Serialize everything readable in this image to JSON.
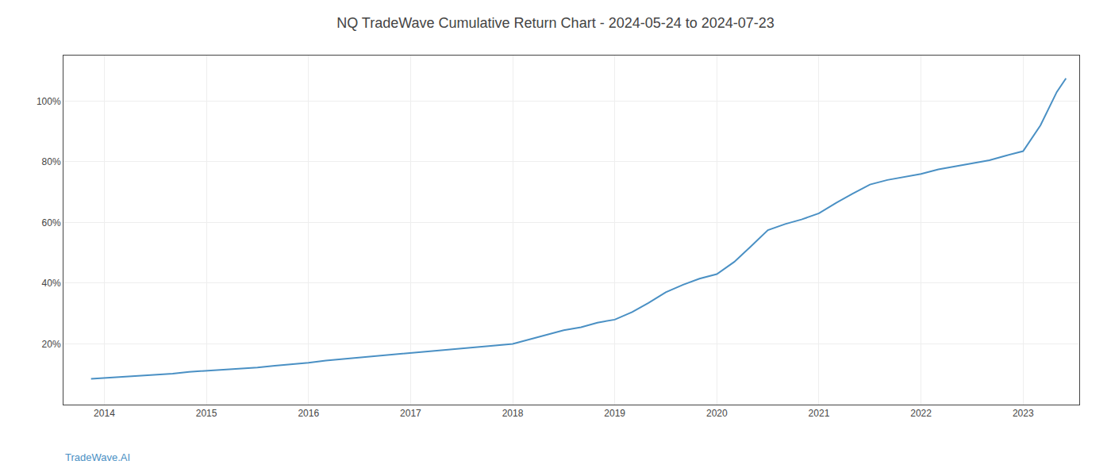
{
  "chart_data": {
    "type": "line",
    "title": "NQ TradeWave Cumulative Return Chart - 2024-05-24 to 2024-07-23",
    "annotations": [
      "TradeWave.AI"
    ],
    "color": "#4a90c4",
    "grid": true,
    "x": [
      2013.87,
      2014.0,
      2014.17,
      2014.33,
      2014.5,
      2014.67,
      2014.83,
      2015.0,
      2015.17,
      2015.33,
      2015.5,
      2015.67,
      2015.83,
      2016.0,
      2016.17,
      2016.33,
      2016.5,
      2016.67,
      2016.83,
      2017.0,
      2017.17,
      2017.33,
      2017.5,
      2017.67,
      2017.83,
      2018.0,
      2018.17,
      2018.33,
      2018.5,
      2018.67,
      2018.83,
      2019.0,
      2019.17,
      2019.33,
      2019.5,
      2019.67,
      2019.83,
      2020.0,
      2020.17,
      2020.33,
      2020.5,
      2020.67,
      2020.83,
      2021.0,
      2021.17,
      2021.33,
      2021.5,
      2021.67,
      2021.83,
      2022.0,
      2022.17,
      2022.33,
      2022.5,
      2022.67,
      2022.83,
      2023.0,
      2023.17,
      2023.33,
      2023.42
    ],
    "values": [
      8.5,
      8.8,
      9.2,
      9.5,
      9.8,
      10.2,
      10.8,
      11.2,
      11.5,
      11.8,
      12.2,
      12.8,
      13.2,
      13.8,
      14.5,
      15.0,
      15.5,
      16.0,
      16.5,
      17.0,
      17.5,
      18.0,
      18.5,
      19.0,
      19.5,
      20.0,
      21.5,
      23.0,
      24.5,
      25.5,
      27.0,
      28.0,
      30.5,
      33.5,
      37.0,
      39.5,
      41.5,
      43.0,
      47.0,
      52.0,
      57.5,
      59.5,
      61.0,
      63.0,
      66.5,
      69.5,
      72.5,
      74.0,
      75.0,
      76.0,
      77.5,
      78.5,
      79.5,
      80.5,
      82.0,
      83.5,
      92.0,
      103.0,
      107.5
    ],
    "xlim": [
      2013.6,
      2023.55
    ],
    "ylim": [
      0,
      115
    ],
    "xticks": [
      2014,
      2015,
      2016,
      2017,
      2018,
      2019,
      2020,
      2021,
      2022,
      2023
    ],
    "yticks": [
      {
        "value": 20,
        "label": "20%"
      },
      {
        "value": 40,
        "label": "40%"
      },
      {
        "value": 60,
        "label": "60%"
      },
      {
        "value": 80,
        "label": "80%"
      },
      {
        "value": 100,
        "label": "100%"
      }
    ]
  }
}
